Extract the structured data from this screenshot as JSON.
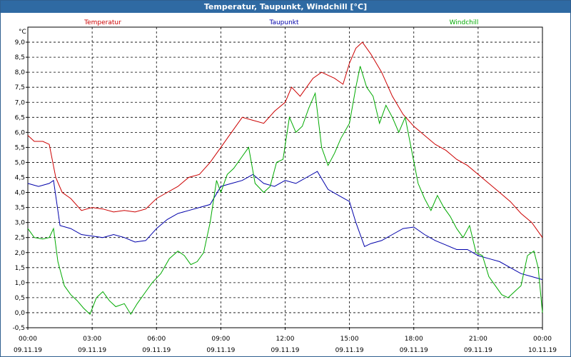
{
  "window": {
    "title": "Temperatur, Taupunkt, Windchill [°C]"
  },
  "chart_data": {
    "type": "line",
    "title": "Temperatur, Taupunkt, Windchill [°C]",
    "ylabel": "°C",
    "ylim": [
      -0.5,
      9.5
    ],
    "yticks": [
      "9,0",
      "8,5",
      "8,0",
      "7,5",
      "7,0",
      "6,5",
      "6,0",
      "5,5",
      "5,0",
      "4,5",
      "4,0",
      "3,5",
      "3,0",
      "2,5",
      "2,0",
      "1,5",
      "1,0",
      "0,5",
      "0,0",
      "-0,5"
    ],
    "xlim": [
      0,
      24
    ],
    "xticks": [
      {
        "time": "00:00",
        "date": "09.11.19"
      },
      {
        "time": "03:00",
        "date": "09.11.19"
      },
      {
        "time": "06:00",
        "date": "09.11.19"
      },
      {
        "time": "09:00",
        "date": "09.11.19"
      },
      {
        "time": "12:00",
        "date": "09.11.19"
      },
      {
        "time": "15:00",
        "date": "09.11.19"
      },
      {
        "time": "18:00",
        "date": "09.11.19"
      },
      {
        "time": "21:00",
        "date": "09.11.19"
      },
      {
        "time": "00:00",
        "date": "10.11.19"
      }
    ],
    "grid": true,
    "series": [
      {
        "name": "Temperatur",
        "color": "#cc0000",
        "points": [
          [
            0,
            5.9
          ],
          [
            0.3,
            5.7
          ],
          [
            0.7,
            5.7
          ],
          [
            1.0,
            5.6
          ],
          [
            1.3,
            4.5
          ],
          [
            1.6,
            4.0
          ],
          [
            2.0,
            3.8
          ],
          [
            2.5,
            3.4
          ],
          [
            3.0,
            3.5
          ],
          [
            3.5,
            3.45
          ],
          [
            4.0,
            3.35
          ],
          [
            4.5,
            3.4
          ],
          [
            5.0,
            3.35
          ],
          [
            5.5,
            3.45
          ],
          [
            6.0,
            3.8
          ],
          [
            6.5,
            4.0
          ],
          [
            7.0,
            4.2
          ],
          [
            7.5,
            4.5
          ],
          [
            8.0,
            4.6
          ],
          [
            8.5,
            5.0
          ],
          [
            9.0,
            5.5
          ],
          [
            9.5,
            6.0
          ],
          [
            10.0,
            6.5
          ],
          [
            10.5,
            6.4
          ],
          [
            11.0,
            6.3
          ],
          [
            11.5,
            6.7
          ],
          [
            12.0,
            7.0
          ],
          [
            12.3,
            7.5
          ],
          [
            12.7,
            7.2
          ],
          [
            13.0,
            7.5
          ],
          [
            13.3,
            7.8
          ],
          [
            13.7,
            8.0
          ],
          [
            14.0,
            7.9
          ],
          [
            14.3,
            7.8
          ],
          [
            14.7,
            7.6
          ],
          [
            15.0,
            8.3
          ],
          [
            15.3,
            8.8
          ],
          [
            15.6,
            9.0
          ],
          [
            16.0,
            8.6
          ],
          [
            16.5,
            8.0
          ],
          [
            17.0,
            7.2
          ],
          [
            17.5,
            6.6
          ],
          [
            18.0,
            6.2
          ],
          [
            18.5,
            5.9
          ],
          [
            19.0,
            5.6
          ],
          [
            19.5,
            5.4
          ],
          [
            20.0,
            5.1
          ],
          [
            20.5,
            4.9
          ],
          [
            21.0,
            4.6
          ],
          [
            21.5,
            4.3
          ],
          [
            22.0,
            4.0
          ],
          [
            22.5,
            3.7
          ],
          [
            23.0,
            3.3
          ],
          [
            23.5,
            3.0
          ],
          [
            24.0,
            2.5
          ]
        ]
      },
      {
        "name": "Taupunkt",
        "color": "#0000aa",
        "points": [
          [
            0,
            4.3
          ],
          [
            0.5,
            4.2
          ],
          [
            1.0,
            4.3
          ],
          [
            1.2,
            4.4
          ],
          [
            1.5,
            2.9
          ],
          [
            2.0,
            2.8
          ],
          [
            2.5,
            2.6
          ],
          [
            3.0,
            2.55
          ],
          [
            3.5,
            2.5
          ],
          [
            4.0,
            2.6
          ],
          [
            4.5,
            2.5
          ],
          [
            5.0,
            2.35
          ],
          [
            5.5,
            2.4
          ],
          [
            6.0,
            2.8
          ],
          [
            6.5,
            3.1
          ],
          [
            7.0,
            3.3
          ],
          [
            7.5,
            3.4
          ],
          [
            8.0,
            3.5
          ],
          [
            8.5,
            3.6
          ],
          [
            9.0,
            4.2
          ],
          [
            9.5,
            4.3
          ],
          [
            10.0,
            4.4
          ],
          [
            10.5,
            4.6
          ],
          [
            11.0,
            4.3
          ],
          [
            11.5,
            4.2
          ],
          [
            12.0,
            4.4
          ],
          [
            12.5,
            4.3
          ],
          [
            13.0,
            4.5
          ],
          [
            13.5,
            4.7
          ],
          [
            14.0,
            4.1
          ],
          [
            14.5,
            3.9
          ],
          [
            15.0,
            3.7
          ],
          [
            15.3,
            3.0
          ],
          [
            15.7,
            2.2
          ],
          [
            16.0,
            2.3
          ],
          [
            16.5,
            2.4
          ],
          [
            17.0,
            2.6
          ],
          [
            17.5,
            2.8
          ],
          [
            18.0,
            2.85
          ],
          [
            18.5,
            2.6
          ],
          [
            19.0,
            2.4
          ],
          [
            19.5,
            2.25
          ],
          [
            20.0,
            2.1
          ],
          [
            20.5,
            2.1
          ],
          [
            21.0,
            1.9
          ],
          [
            21.5,
            1.8
          ],
          [
            22.0,
            1.7
          ],
          [
            22.5,
            1.5
          ],
          [
            23.0,
            1.3
          ],
          [
            23.5,
            1.2
          ],
          [
            24.0,
            1.1
          ]
        ]
      },
      {
        "name": "Windchill",
        "color": "#00aa00",
        "points": [
          [
            0,
            2.8
          ],
          [
            0.3,
            2.5
          ],
          [
            0.7,
            2.45
          ],
          [
            1.0,
            2.5
          ],
          [
            1.2,
            2.8
          ],
          [
            1.4,
            1.7
          ],
          [
            1.7,
            0.9
          ],
          [
            2.0,
            0.6
          ],
          [
            2.3,
            0.4
          ],
          [
            2.6,
            0.15
          ],
          [
            2.9,
            -0.05
          ],
          [
            3.2,
            0.5
          ],
          [
            3.5,
            0.7
          ],
          [
            3.8,
            0.4
          ],
          [
            4.1,
            0.2
          ],
          [
            4.5,
            0.3
          ],
          [
            4.8,
            -0.05
          ],
          [
            5.1,
            0.3
          ],
          [
            5.5,
            0.7
          ],
          [
            5.8,
            1.0
          ],
          [
            6.2,
            1.3
          ],
          [
            6.6,
            1.8
          ],
          [
            7.0,
            2.05
          ],
          [
            7.3,
            1.9
          ],
          [
            7.6,
            1.6
          ],
          [
            7.9,
            1.7
          ],
          [
            8.2,
            2.0
          ],
          [
            8.5,
            3.0
          ],
          [
            8.8,
            4.4
          ],
          [
            9.0,
            4.0
          ],
          [
            9.3,
            4.6
          ],
          [
            9.6,
            4.8
          ],
          [
            10.0,
            5.2
          ],
          [
            10.3,
            5.5
          ],
          [
            10.6,
            4.3
          ],
          [
            11.0,
            4.0
          ],
          [
            11.3,
            4.2
          ],
          [
            11.6,
            5.0
          ],
          [
            11.9,
            5.1
          ],
          [
            12.2,
            6.5
          ],
          [
            12.5,
            6.0
          ],
          [
            12.8,
            6.2
          ],
          [
            13.1,
            6.8
          ],
          [
            13.4,
            7.3
          ],
          [
            13.7,
            5.5
          ],
          [
            14.0,
            4.9
          ],
          [
            14.3,
            5.3
          ],
          [
            14.6,
            5.8
          ],
          [
            15.0,
            6.3
          ],
          [
            15.3,
            7.5
          ],
          [
            15.5,
            8.2
          ],
          [
            15.8,
            7.5
          ],
          [
            16.1,
            7.2
          ],
          [
            16.4,
            6.3
          ],
          [
            16.7,
            6.9
          ],
          [
            17.0,
            6.5
          ],
          [
            17.3,
            6.0
          ],
          [
            17.6,
            6.5
          ],
          [
            17.9,
            5.4
          ],
          [
            18.2,
            4.3
          ],
          [
            18.5,
            3.8
          ],
          [
            18.8,
            3.4
          ],
          [
            19.1,
            3.9
          ],
          [
            19.4,
            3.5
          ],
          [
            19.7,
            3.2
          ],
          [
            20.0,
            2.8
          ],
          [
            20.3,
            2.5
          ],
          [
            20.6,
            2.9
          ],
          [
            20.9,
            2.0
          ],
          [
            21.2,
            1.9
          ],
          [
            21.5,
            1.2
          ],
          [
            21.8,
            0.9
          ],
          [
            22.1,
            0.6
          ],
          [
            22.4,
            0.5
          ],
          [
            22.7,
            0.7
          ],
          [
            23.0,
            0.9
          ],
          [
            23.3,
            1.9
          ],
          [
            23.6,
            2.05
          ],
          [
            23.8,
            1.5
          ],
          [
            24.0,
            0.0
          ]
        ]
      }
    ]
  }
}
